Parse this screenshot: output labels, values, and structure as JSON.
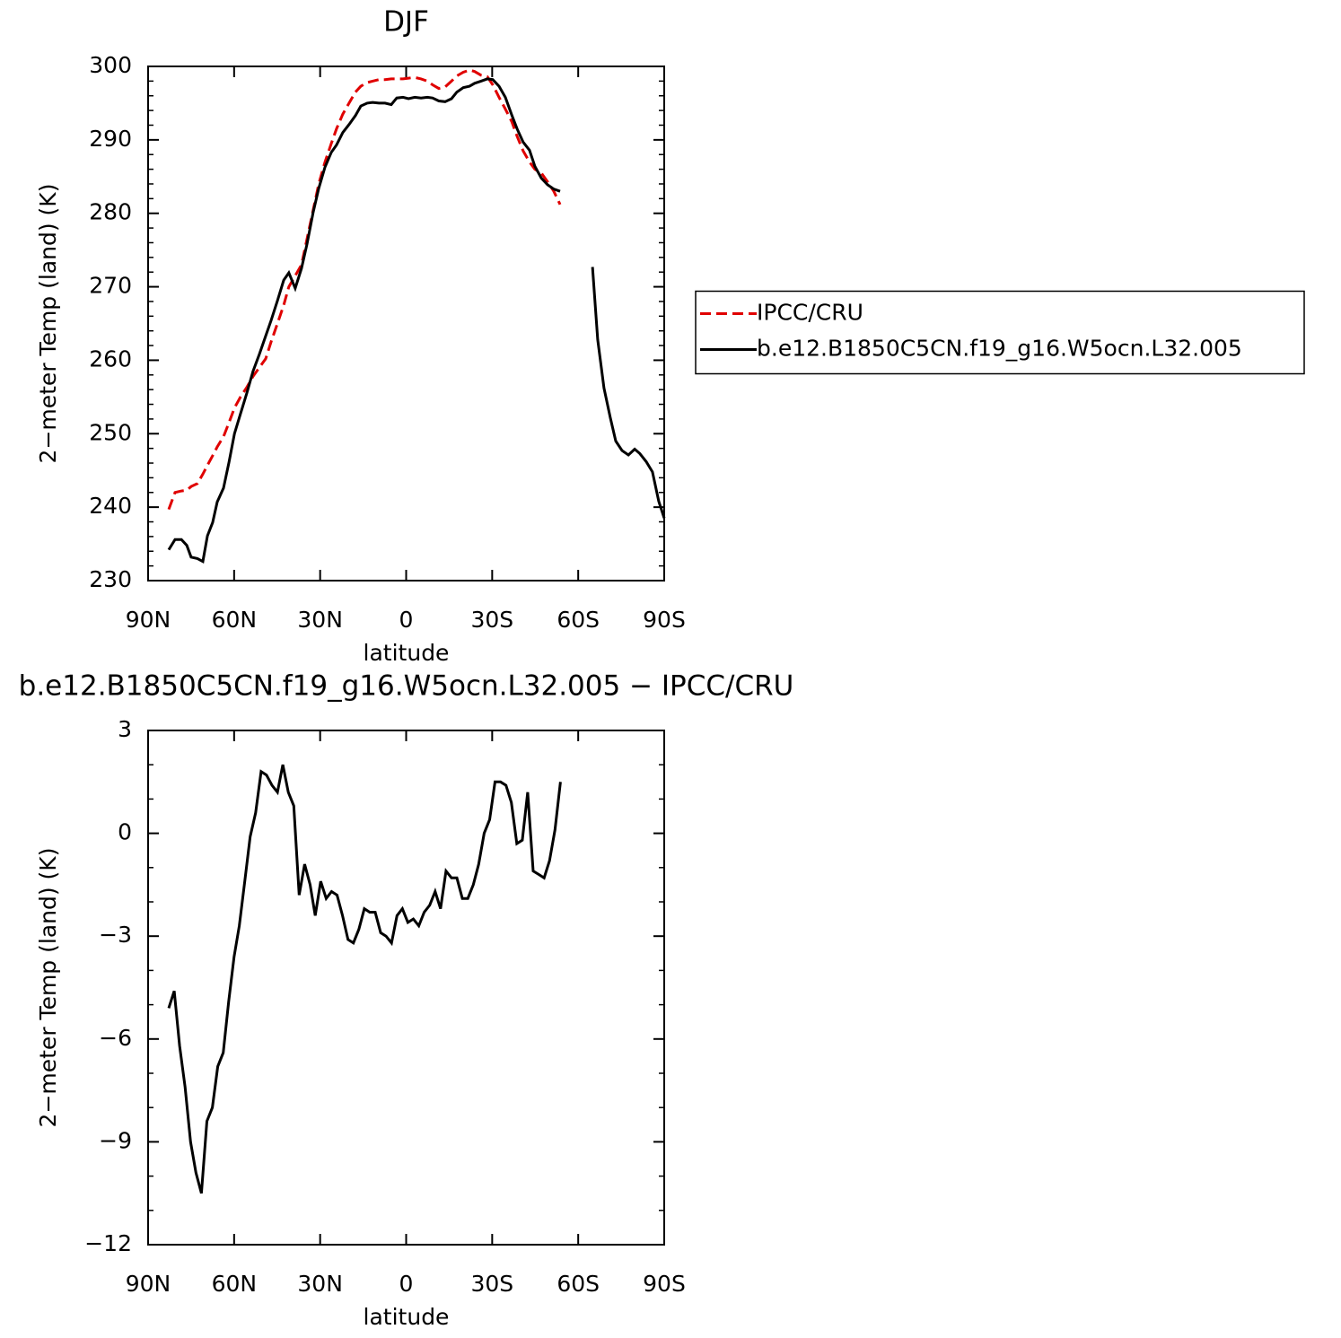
{
  "chart_data": [
    {
      "type": "line",
      "title": "DJF",
      "xlabel": "latitude",
      "ylabel": "2−meter Temp (land) (K)",
      "xlim": [
        90,
        -90
      ],
      "xticks": [
        {
          "value": 90,
          "label": "90N"
        },
        {
          "value": 60,
          "label": "60N"
        },
        {
          "value": 30,
          "label": "30N"
        },
        0,
        {
          "value": -30,
          "label": "30S"
        },
        {
          "value": -60,
          "label": "60S"
        },
        {
          "value": -90,
          "label": "90S"
        }
      ],
      "ylim": [
        230,
        300
      ],
      "yticks": [
        230,
        240,
        250,
        260,
        270,
        280,
        290,
        300
      ],
      "legend": "right",
      "x": [
        82.8,
        80.6,
        78.4,
        76.5,
        75.0,
        72.8,
        70.9,
        69.3,
        67.5,
        65.9,
        63.7,
        61.8,
        59.9,
        57.8,
        55.6,
        53.4,
        51.2,
        49.0,
        47.1,
        44.9,
        42.7,
        40.9,
        38.7,
        36.5,
        34.6,
        32.4,
        30.5,
        28.3,
        26.1,
        24.3,
        22.1,
        19.9,
        17.7,
        15.8,
        13.6,
        11.7,
        9.5,
        7.4,
        5.2,
        3.3,
        1.1,
        -0.8,
        -3.0,
        -5.2,
        -7.4,
        -9.2,
        -11.4,
        -13.6,
        -15.8,
        -17.7,
        -19.9,
        -22.1,
        -23.9,
        -26.1,
        -28.3,
        -30.2,
        -32.4,
        -34.6,
        -36.8,
        -38.7,
        -40.8,
        -43.0,
        -44.9,
        -47.1,
        -49.3,
        -51.5,
        -53.7,
        -59.0,
        -65.0,
        -66.8,
        -69.0,
        -71.2,
        -73.1,
        -75.3,
        -77.5,
        -79.7,
        -81.5,
        -83.7,
        -85.9,
        -88.1,
        -90.0
      ],
      "series": [
        {
          "name": "IPCC/CRU",
          "color": "#e00000",
          "linestyle": "dashed",
          "values": [
            239.7,
            242,
            242.2,
            242.3,
            242.8,
            243.2,
            244.5,
            245.7,
            247,
            248.2,
            249.6,
            251.5,
            253.5,
            255,
            256.3,
            257.8,
            259,
            260.2,
            262.5,
            265,
            267.5,
            270,
            271.5,
            273,
            276.5,
            280.5,
            284,
            287,
            289.5,
            291.5,
            293.5,
            295,
            296.5,
            297.3,
            297.8,
            298,
            298.2,
            298.2,
            298.3,
            298.3,
            298.3,
            298.4,
            298.5,
            298.3,
            298,
            297.5,
            297,
            297.2,
            298,
            298.7,
            299.2,
            299.5,
            299.3,
            298.8,
            298.6,
            297.5,
            295.8,
            294.2,
            292.5,
            290.5,
            288.5,
            287,
            286,
            285.5,
            284.3,
            283,
            281.2,
            null,
            null,
            null,
            null,
            null,
            null,
            null,
            null,
            null,
            null,
            null,
            null,
            null,
            null
          ]
        },
        {
          "name": "b.e12.B1850C5CN.f19_g16.W5ocn.L32.005",
          "color": "#000000",
          "linestyle": "solid",
          "values": [
            234.2,
            235.6,
            235.6,
            234.8,
            233.2,
            233,
            232.6,
            236.1,
            237.9,
            240.7,
            242.6,
            246.1,
            250,
            252.7,
            255.5,
            258.5,
            260.8,
            263.3,
            265.4,
            268.1,
            270.9,
            271.9,
            269.8,
            272.5,
            275.8,
            280.2,
            283.4,
            286.3,
            288.3,
            289.3,
            291,
            292.1,
            293.3,
            294.6,
            295,
            295.1,
            295,
            295,
            294.8,
            295.7,
            295.8,
            295.6,
            295.8,
            295.7,
            295.8,
            295.7,
            295.3,
            295.2,
            295.6,
            296.5,
            297.1,
            297.3,
            297.7,
            298,
            298.3,
            298.2,
            297.3,
            295.8,
            293.4,
            291.5,
            289.7,
            288.6,
            286.4,
            284.8,
            283.9,
            283.3,
            283,
            null,
            272.7,
            262.8,
            256.2,
            252.2,
            249,
            247.7,
            247.1,
            247.9,
            247.3,
            246.2,
            244.8,
            240.8,
            238.5
          ]
        }
      ]
    },
    {
      "type": "line",
      "title": "b.e12.B1850C5CN.f19_g16.W5ocn.L32.005 − IPCC/CRU",
      "xlabel": "latitude",
      "ylabel": "2−meter Temp (land) (K)",
      "xlim": [
        90,
        -90
      ],
      "xticks": [
        {
          "value": 90,
          "label": "90N"
        },
        {
          "value": 60,
          "label": "60N"
        },
        {
          "value": 30,
          "label": "30N"
        },
        0,
        {
          "value": -30,
          "label": "30S"
        },
        {
          "value": -60,
          "label": "60S"
        },
        {
          "value": -90,
          "label": "90S"
        }
      ],
      "ylim": [
        -12,
        3
      ],
      "yticks": [
        {
          "value": -12,
          "label": "−12"
        },
        {
          "value": -9,
          "label": "−9"
        },
        {
          "value": -6,
          "label": "−6"
        },
        {
          "value": -3,
          "label": "−3"
        },
        0,
        3
      ],
      "x": [
        82.8,
        80.9,
        79.0,
        77.1,
        75.2,
        73.3,
        71.4,
        69.5,
        67.6,
        65.7,
        63.8,
        61.9,
        60.0,
        58.2,
        56.3,
        54.4,
        52.5,
        50.6,
        48.7,
        46.8,
        44.9,
        43.0,
        41.1,
        39.2,
        37.3,
        35.4,
        33.5,
        31.7,
        29.8,
        27.9,
        26.0,
        24.1,
        22.2,
        20.3,
        18.4,
        16.5,
        14.6,
        12.7,
        10.8,
        8.9,
        7.0,
        5.1,
        3.2,
        1.3,
        -0.6,
        -2.5,
        -4.4,
        -6.3,
        -8.2,
        -10.1,
        -12.0,
        -13.9,
        -15.8,
        -17.7,
        -19.6,
        -21.5,
        -23.4,
        -25.3,
        -27.2,
        -29.1,
        -31.0,
        -32.9,
        -34.8,
        -36.7,
        -38.6,
        -40.5,
        -42.4,
        -44.3,
        -46.2,
        -48.1,
        -50.0,
        -51.9,
        -53.8
      ],
      "series": [
        {
          "color": "#000000",
          "linestyle": "solid",
          "values": [
            -5.1,
            -4.6,
            -6.2,
            -7.4,
            -9,
            -9.9,
            -10.5,
            -8.4,
            -8,
            -6.8,
            -6.4,
            -4.9,
            -3.6,
            -2.7,
            -1.4,
            -0.1,
            0.6,
            1.8,
            1.7,
            1.4,
            1.2,
            2.0,
            1.2,
            0.8,
            -1.8,
            -0.9,
            -1.5,
            -2.4,
            -1.4,
            -1.9,
            -1.7,
            -1.8,
            -2.4,
            -3.1,
            -3.2,
            -2.8,
            -2.2,
            -2.3,
            -2.3,
            -2.9,
            -3.0,
            -3.2,
            -2.4,
            -2.2,
            -2.6,
            -2.5,
            -2.7,
            -2.3,
            -2.1,
            -1.7,
            -2.2,
            -1.1,
            -1.3,
            -1.3,
            -1.9,
            -1.9,
            -1.5,
            -0.9,
            0.0,
            0.4,
            1.5,
            1.5,
            1.4,
            0.9,
            -0.3,
            -0.2,
            1.2,
            -1.1,
            -1.2,
            -1.3,
            -0.8,
            0.1,
            1.5
          ]
        }
      ]
    }
  ]
}
